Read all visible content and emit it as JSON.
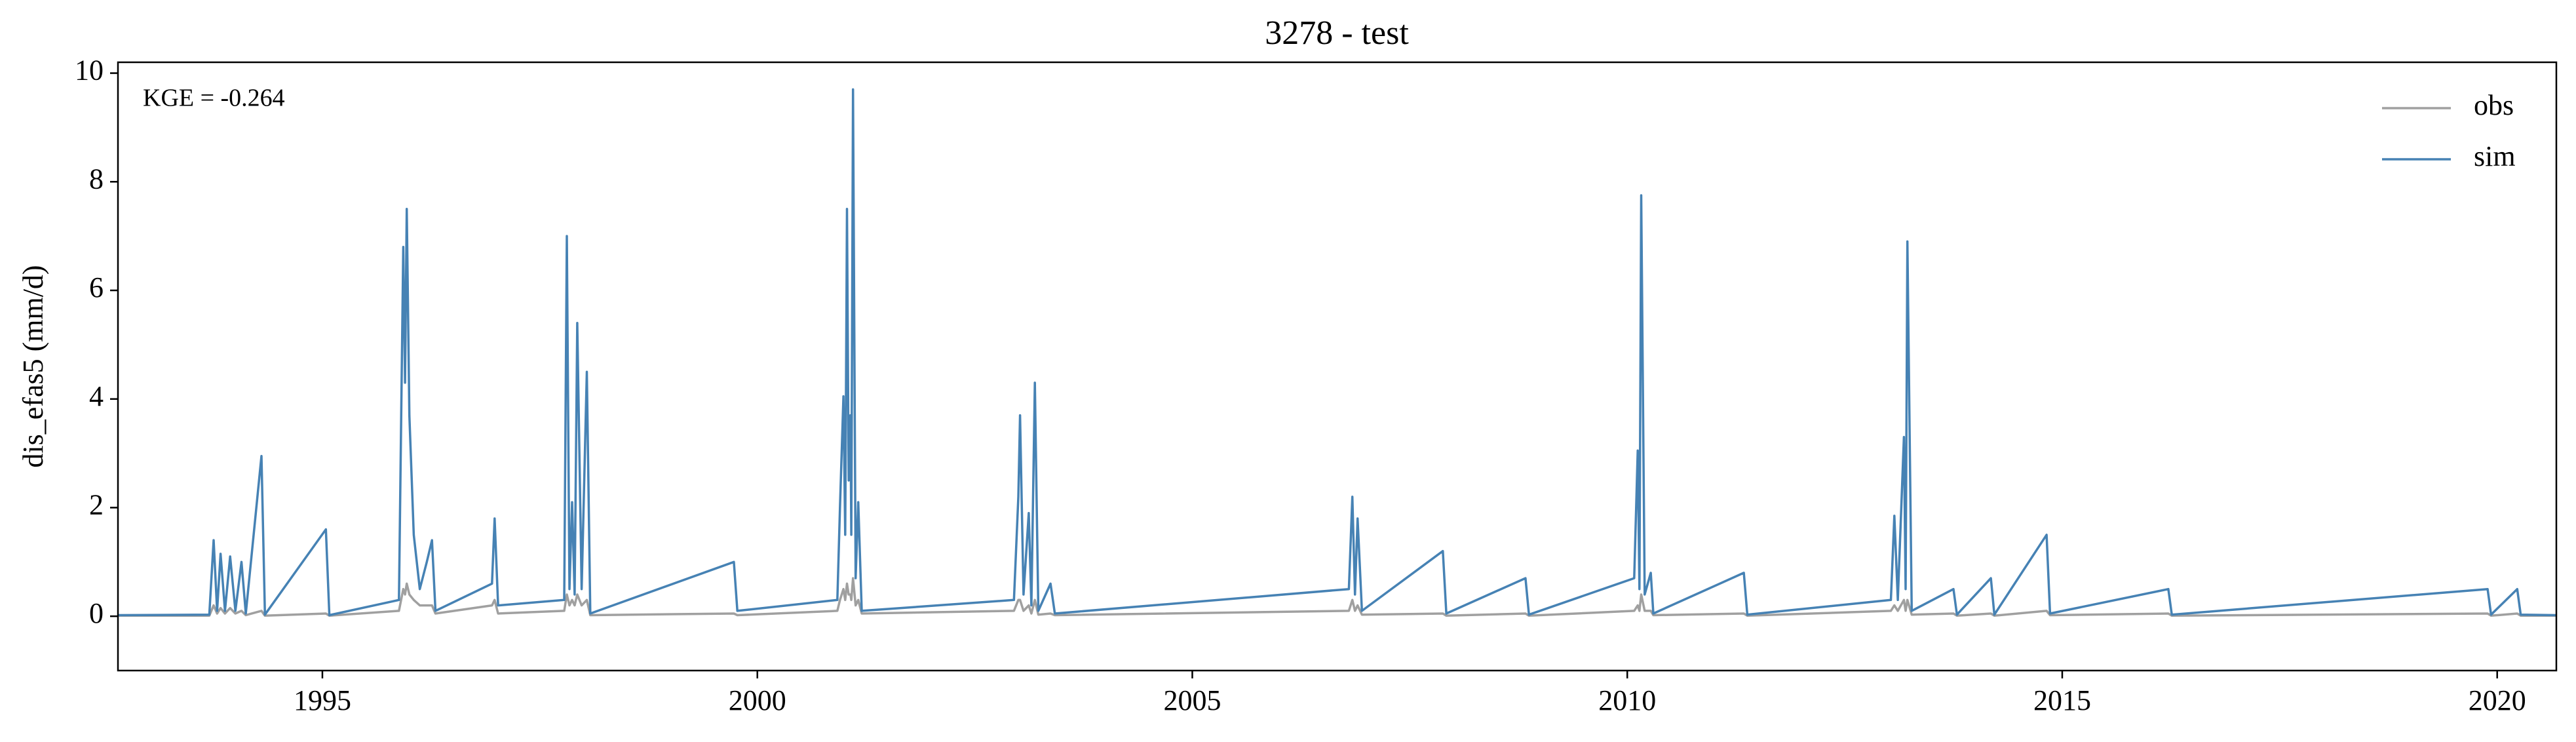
{
  "chart_data": {
    "type": "line",
    "title": "3278 - test",
    "ylabel": "dis_efas5 (mm/d)",
    "annotation": "KGE = -0.264",
    "x": [
      1992.65,
      1993.7,
      1993.75,
      1993.79,
      1993.83,
      1993.88,
      1993.94,
      1994.0,
      1994.07,
      1994.12,
      1994.3,
      1994.34,
      1995.04,
      1995.08,
      1995.88,
      1995.93,
      1995.95,
      1995.97,
      1996.0,
      1996.05,
      1996.12,
      1996.2,
      1996.26,
      1996.3,
      1996.95,
      1996.98,
      1997.02,
      1997.78,
      1997.81,
      1997.84,
      1997.87,
      1997.9,
      1997.93,
      1997.98,
      1998.04,
      1998.08,
      1999.73,
      1999.77,
      2000.92,
      2000.95,
      2000.99,
      2001.01,
      2001.03,
      2001.05,
      2001.07,
      2001.08,
      2001.1,
      2001.13,
      2001.16,
      2001.2,
      2002.95,
      2003.0,
      2003.02,
      2003.06,
      2003.12,
      2003.15,
      2003.19,
      2003.23,
      2003.37,
      2003.42,
      2006.8,
      2006.84,
      2006.87,
      2006.9,
      2006.95,
      2007.88,
      2007.92,
      2008.83,
      2008.87,
      2010.08,
      2010.12,
      2010.14,
      2010.16,
      2010.2,
      2010.27,
      2010.3,
      2011.34,
      2011.38,
      2013.03,
      2013.07,
      2013.11,
      2013.18,
      2013.2,
      2013.22,
      2013.27,
      2013.75,
      2013.79,
      2014.18,
      2014.22,
      2014.82,
      2014.86,
      2016.22,
      2016.26,
      2019.89,
      2019.93,
      2020.23,
      2020.27,
      2020.68
    ],
    "series": [
      {
        "name": "obs",
        "color": "#a0a0a0",
        "values": [
          0.01,
          0.01,
          0.2,
          0.05,
          0.15,
          0.05,
          0.15,
          0.05,
          0.1,
          0.02,
          0.1,
          0.01,
          0.05,
          0.01,
          0.1,
          0.5,
          0.4,
          0.6,
          0.4,
          0.3,
          0.2,
          0.2,
          0.2,
          0.05,
          0.2,
          0.3,
          0.05,
          0.1,
          0.4,
          0.2,
          0.3,
          0.2,
          0.4,
          0.2,
          0.3,
          0.02,
          0.05,
          0.02,
          0.1,
          0.3,
          0.5,
          0.3,
          0.6,
          0.4,
          0.4,
          0.3,
          0.7,
          0.2,
          0.3,
          0.05,
          0.1,
          0.3,
          0.3,
          0.1,
          0.2,
          0.05,
          0.3,
          0.03,
          0.05,
          0.02,
          0.1,
          0.3,
          0.1,
          0.2,
          0.03,
          0.05,
          0.01,
          0.05,
          0.01,
          0.1,
          0.2,
          0.1,
          0.4,
          0.1,
          0.1,
          0.02,
          0.05,
          0.01,
          0.1,
          0.2,
          0.1,
          0.3,
          0.1,
          0.3,
          0.03,
          0.05,
          0.01,
          0.05,
          0.01,
          0.1,
          0.02,
          0.05,
          0.01,
          0.05,
          0.01,
          0.05,
          0.01,
          0.01
        ]
      },
      {
        "name": "sim",
        "color": "#4682b4",
        "values": [
          0.02,
          0.03,
          1.4,
          0.1,
          1.15,
          0.1,
          1.1,
          0.1,
          1.0,
          0.05,
          2.95,
          0.03,
          1.6,
          0.02,
          0.3,
          6.8,
          4.3,
          7.5,
          3.7,
          1.5,
          0.5,
          1.0,
          1.4,
          0.1,
          0.6,
          1.8,
          0.2,
          0.3,
          7.0,
          0.5,
          2.1,
          0.4,
          5.4,
          0.5,
          4.5,
          0.05,
          1.0,
          0.1,
          0.3,
          2.0,
          4.05,
          1.5,
          7.5,
          2.5,
          3.7,
          1.5,
          9.7,
          0.7,
          2.1,
          0.1,
          0.3,
          2.2,
          3.7,
          0.4,
          1.9,
          0.2,
          4.3,
          0.1,
          0.6,
          0.05,
          0.5,
          2.2,
          0.4,
          1.8,
          0.1,
          1.2,
          0.05,
          0.7,
          0.03,
          0.7,
          3.05,
          0.5,
          7.75,
          0.4,
          0.8,
          0.05,
          0.8,
          0.03,
          0.3,
          1.85,
          0.3,
          3.3,
          0.5,
          6.9,
          0.1,
          0.5,
          0.03,
          0.7,
          0.03,
          1.5,
          0.05,
          0.5,
          0.03,
          0.5,
          0.03,
          0.5,
          0.03,
          0.02
        ]
      }
    ],
    "xlim": [
      1992.65,
      2020.68
    ],
    "xticks": [
      1995,
      2000,
      2005,
      2010,
      2015,
      2020
    ],
    "ylim": [
      -1,
      10.2
    ],
    "yticks": [
      0,
      2,
      4,
      6,
      8,
      10
    ],
    "legend": "upper right",
    "grid": false
  }
}
